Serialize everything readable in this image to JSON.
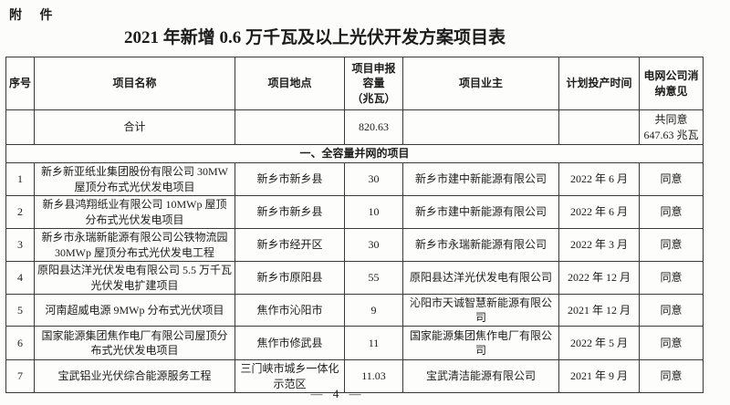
{
  "page": {
    "attachment_label": "附 件",
    "title": "2021 年新增 0.6 万千瓦及以上光伏开发方案项目表",
    "page_number": "— 4 —"
  },
  "table": {
    "headers": [
      "序号",
      "项目名称",
      "项目地点",
      "项目申报\n容量\n（兆瓦）",
      "项目业主",
      "计划投产时间",
      "电网公司消\n纳意见"
    ],
    "total_row": {
      "label": "合计",
      "capacity": "820.63",
      "opinion": "共同意\n647.63 兆瓦"
    },
    "section_row": "一、全容量并网的项目",
    "rows": [
      {
        "no": "1",
        "name": "新乡新亚纸业集团股份有限公司 30MW 屋顶分布式光伏发电项目",
        "location": "新乡市新乡县",
        "capacity": "30",
        "owner": "新乡市建中新能源有限公司",
        "time": "2022 年 6 月",
        "opinion": "同意",
        "height": 36
      },
      {
        "no": "2",
        "name": "新乡县鸿翔纸业有限公司 10MWp 屋顶分布式光伏发电项目",
        "location": "新乡市新乡县",
        "capacity": "10",
        "owner": "新乡市建中新能源有限公司",
        "time": "2022 年 6 月",
        "opinion": "同意",
        "height": 36
      },
      {
        "no": "3",
        "name": "新乡市永瑞新能源有限公司公铁物流园 30MWp 屋顶分布式光伏发电工程",
        "location": "新乡市经开区",
        "capacity": "30",
        "owner": "新乡市永瑞新能源有限公司",
        "time": "2022 年 3 月",
        "opinion": "同意",
        "height": 36
      },
      {
        "no": "4",
        "name": "原阳县达洋光伏发电有限公司 5.5 万千瓦光伏发电扩建项目",
        "location": "新乡市原阳县",
        "capacity": "55",
        "owner": "原阳县达洋光伏发电有限公司",
        "time": "2022 年 12 月",
        "opinion": "同意",
        "height": 36
      },
      {
        "no": "5",
        "name": "河南超威电源 9MWp 分布式光伏项目",
        "location": "焦作市沁阳市",
        "capacity": "9",
        "owner": "沁阳市天诚智慧新能源有限公司",
        "time": "2021 年 12 月",
        "opinion": "同意",
        "height": 33
      },
      {
        "no": "6",
        "name": "国家能源集团焦作电厂有限公司屋顶分布式光伏发电项目",
        "location": "焦作市修武县",
        "capacity": "11",
        "owner": "国家能源集团焦作电厂有限公司",
        "time": "2022 年 5 月",
        "opinion": "同意",
        "height": 37
      },
      {
        "no": "7",
        "name": "宝武铝业光伏综合能源服务工程",
        "location": "三门峡市城乡一体化示范区",
        "capacity": "11.03",
        "owner": "宝武清洁能源有限公司",
        "time": "2021 年 9 月",
        "opinion": "同意",
        "height": 32
      }
    ]
  }
}
